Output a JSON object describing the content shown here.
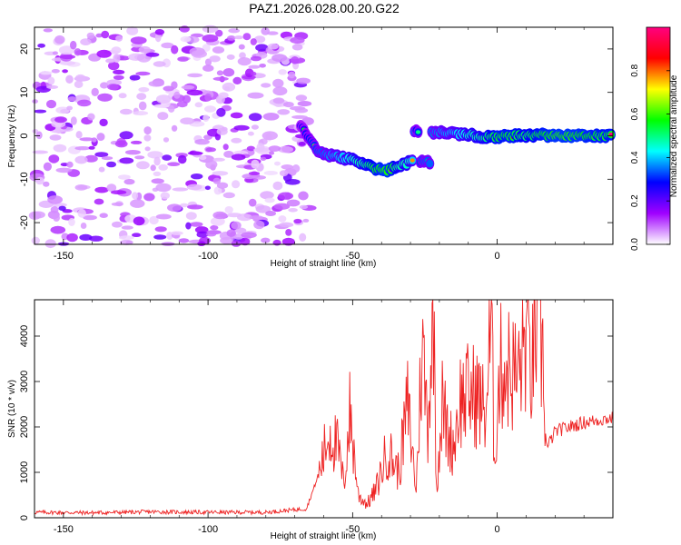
{
  "title": "PAZ1.2026.028.00.20.G22",
  "chart_data": [
    {
      "type": "heatmap",
      "title": "PAZ1.2026.028.00.20.G22",
      "xlabel": "Height of straight line (km)",
      "ylabel": "Frequency (Hz)",
      "xlim": [
        -160,
        40
      ],
      "ylim": [
        -25,
        25
      ],
      "xticks": [
        -150,
        -100,
        -50,
        0
      ],
      "yticks": [
        -20,
        -10,
        0,
        10,
        20
      ],
      "noise_region_x": [
        -160,
        -65
      ],
      "signal_track": [
        {
          "x": -68,
          "y": 2.5,
          "amp": 0.35
        },
        {
          "x": -65,
          "y": -1,
          "amp": 0.45
        },
        {
          "x": -62,
          "y": -3.5,
          "amp": 0.5
        },
        {
          "x": -58,
          "y": -4.5,
          "amp": 0.55
        },
        {
          "x": -54,
          "y": -5,
          "amp": 0.6
        },
        {
          "x": -50,
          "y": -5.5,
          "amp": 0.7
        },
        {
          "x": -46,
          "y": -6.5,
          "amp": 0.75
        },
        {
          "x": -42,
          "y": -7.5,
          "amp": 0.85
        },
        {
          "x": -38,
          "y": -8,
          "amp": 0.9
        },
        {
          "x": -34,
          "y": -7,
          "amp": 0.75
        },
        {
          "x": -30,
          "y": -6,
          "amp": 0.7
        },
        {
          "x": -28,
          "y": 1,
          "amp": 0.45
        },
        {
          "x": -26,
          "y": -6,
          "amp": 0.5
        },
        {
          "x": -20,
          "y": 0.8,
          "amp": 0.55
        },
        {
          "x": -15,
          "y": 0.5,
          "amp": 0.6
        },
        {
          "x": -10,
          "y": 0.3,
          "amp": 0.7
        },
        {
          "x": -5,
          "y": -0.3,
          "amp": 0.75
        },
        {
          "x": 0,
          "y": -0.3,
          "amp": 0.85
        },
        {
          "x": 5,
          "y": 0,
          "amp": 0.85
        },
        {
          "x": 10,
          "y": 0,
          "amp": 0.8
        },
        {
          "x": 15,
          "y": 0.2,
          "amp": 0.85
        },
        {
          "x": 20,
          "y": 0,
          "amp": 0.9
        },
        {
          "x": 25,
          "y": 0,
          "amp": 0.9
        },
        {
          "x": 30,
          "y": 0,
          "amp": 0.88
        },
        {
          "x": 35,
          "y": 0,
          "amp": 0.85
        },
        {
          "x": 40,
          "y": 0,
          "amp": 0.85
        }
      ]
    },
    {
      "type": "colorbar",
      "label": "Normalized spectral amplitude",
      "range": [
        0,
        1
      ],
      "ticks": [
        "0.0",
        "0.2",
        "0.4",
        "0.6",
        "0.8"
      ],
      "tick_values": [
        0,
        0.2,
        0.4,
        0.6,
        0.8
      ],
      "colors": [
        "#ffffff",
        "#a000ff",
        "#0000ff",
        "#00ffff",
        "#00ff00",
        "#ffff00",
        "#ff0000",
        "#ff0080"
      ]
    },
    {
      "type": "line",
      "xlabel": "Height of straight line (km)",
      "ylabel": "SNR (10 * v/v)",
      "xlim": [
        -160,
        40
      ],
      "ylim": [
        0,
        4800
      ],
      "xticks": [
        -150,
        -100,
        -50,
        0
      ],
      "yticks": [
        0,
        1000,
        2000,
        3000,
        4000
      ],
      "series": [
        {
          "name": "SNR",
          "color": "#ee2222",
          "x": [
            -160,
            -140,
            -120,
            -100,
            -80,
            -66,
            -62,
            -58,
            -55,
            -53,
            -51,
            -48,
            -45,
            -42,
            -38,
            -34,
            -31,
            -28,
            -26,
            -24,
            -22,
            -21,
            -19,
            -17,
            -15,
            -13,
            -10,
            -7,
            -4,
            -2,
            -1,
            1,
            4,
            7,
            10,
            12,
            13,
            14,
            15,
            16,
            17,
            20,
            25,
            30,
            35,
            40
          ],
          "y": [
            120,
            110,
            130,
            120,
            120,
            200,
            900,
            1900,
            1500,
            700,
            2300,
            500,
            300,
            600,
            1500,
            1000,
            2500,
            600,
            3800,
            2100,
            4700,
            700,
            2500,
            1800,
            1600,
            2600,
            2700,
            2700,
            2300,
            4300,
            1300,
            3300,
            3300,
            3100,
            4000,
            3200,
            4000,
            4600,
            3900,
            3300,
            1500,
            1900,
            2000,
            2100,
            2150,
            2200
          ]
        }
      ]
    }
  ]
}
